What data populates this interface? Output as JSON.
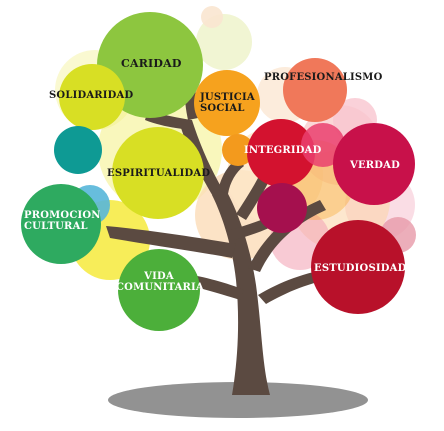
{
  "values": {
    "caridad": "CARIDAD",
    "solidaridad": "SOLIDARIDAD",
    "justicia_social": [
      "JUSTICIA",
      "SOCIAL"
    ],
    "profesionalismo": "PROFESIONALISMO",
    "espiritualidad": "ESPIRITUALIDAD",
    "integridad": "INTEGRIDAD",
    "verdad": "VERDAD",
    "promocion_cultural": [
      "PROMOCION",
      "CULTURAL"
    ],
    "vida_comunitaria": [
      "VIDA",
      "COMUNITARIA"
    ],
    "estudiosidad": "ESTUDIOSIDAD"
  },
  "colors": {
    "trunk": "#5a4a40",
    "shadow": "#8a8a8a",
    "caridad": "#8dc63f",
    "solidaridad": "#d8df24",
    "justicia_social": "#f6a21e",
    "profesionalismo": "#f0785a",
    "espiritualidad": "#d8df24",
    "integridad": "#d3122f",
    "verdad": "#c8114a",
    "promocion_cultural": "#2eaa60",
    "vida_comunitaria": "#4caf3a",
    "estudiosidad": "#b8112a",
    "teal": "#0e9a94",
    "magenta": "#a5104e",
    "yellow_bg": "#f6ea3c",
    "peach_bg": "#fbd3a6",
    "pink_bg": "#f8b9c8"
  }
}
